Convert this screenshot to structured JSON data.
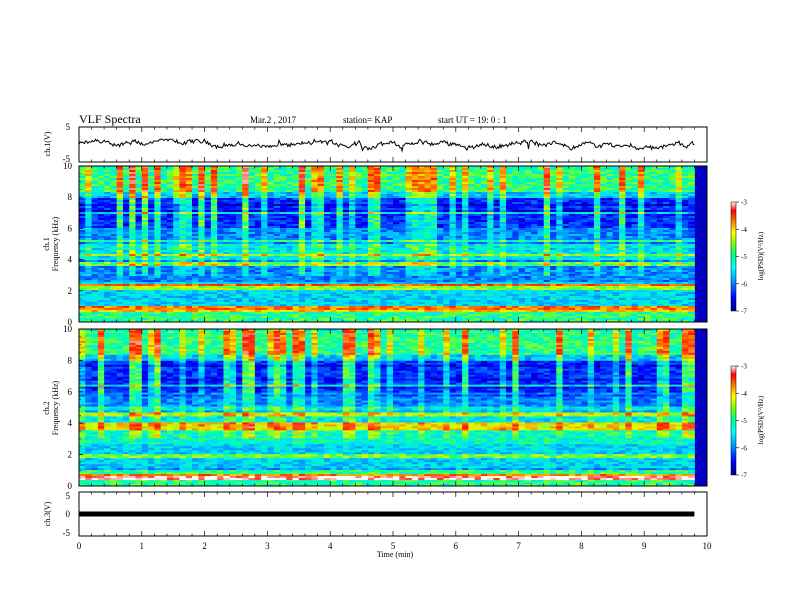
{
  "header": {
    "title": "VLF Spectra",
    "date": "Mar.2 , 2017",
    "station": "station= KAP",
    "start_ut": "start  UT =   19: 0  : 1"
  },
  "chart_data": [
    {
      "type": "line",
      "panel": "ch1-waveform",
      "ylabel": "ch.1(V)",
      "ylim": [
        -5,
        5
      ],
      "yticks": [
        "5",
        "-5"
      ],
      "xlim": [
        0,
        10
      ],
      "data_extent_x": [
        0,
        9.8
      ],
      "approx_mean": 0,
      "approx_range": [
        -1.8,
        1.5
      ]
    },
    {
      "type": "heatmap",
      "panel": "ch1-spectrogram",
      "ylabel": "ch.1\nFrequency (kHz)",
      "ylim": [
        0,
        10
      ],
      "yticks": [
        "0",
        "2",
        "4",
        "6",
        "8",
        "10"
      ],
      "xlim": [
        0,
        10
      ],
      "data_extent_x": [
        0,
        9.8
      ],
      "colorbar": {
        "label": "log(PSD)(V²/Hz)",
        "range": [
          -7,
          -3
        ],
        "ticks": [
          "-3",
          "-4",
          "-5",
          "-6",
          "-7"
        ],
        "colormap": [
          "#000080",
          "#0000ff",
          "#00a0ff",
          "#00ffff",
          "#00ff80",
          "#80ff00",
          "#ffff00",
          "#ff8000",
          "#ff0000",
          "#ffffff"
        ]
      },
      "features": [
        {
          "freq_khz": [
            6.0,
            8.0
          ],
          "log_psd": -6.3,
          "desc": "dark band"
        },
        {
          "freq_khz": [
            0.6,
            1.0
          ],
          "log_psd": -3.8,
          "desc": "strong band"
        },
        {
          "freq_khz": [
            2.0,
            2.4
          ],
          "log_psd": -4.5,
          "desc": "enhanced band"
        },
        {
          "freq_khz": [
            3.2,
            4.0
          ],
          "log_psd": -5.8,
          "desc": "weak band"
        }
      ]
    },
    {
      "type": "heatmap",
      "panel": "ch2-spectrogram",
      "ylabel": "ch.2\nFrequency (kHz)",
      "ylim": [
        0,
        10
      ],
      "yticks": [
        "0",
        "2",
        "4",
        "6",
        "8",
        "10"
      ],
      "xlim": [
        0,
        10
      ],
      "data_extent_x": [
        0,
        9.8
      ],
      "colorbar": {
        "label": "log(PSD)(V²/Hz)",
        "range": [
          -7,
          -3
        ],
        "ticks": [
          "-3",
          "-4",
          "-5",
          "-6",
          "-7"
        ]
      },
      "features": [
        {
          "freq_khz": [
            6.0,
            8.0
          ],
          "log_psd": -6.3,
          "desc": "dark band"
        },
        {
          "freq_khz": [
            3.5,
            4.0
          ],
          "log_psd": -4.2,
          "desc": "enhanced band"
        },
        {
          "freq_khz": [
            0.4,
            0.8
          ],
          "log_psd": -3.8,
          "desc": "strong band"
        }
      ]
    },
    {
      "type": "line",
      "panel": "ch3-waveform",
      "ylabel": "ch.3(V)",
      "ylim": [
        -5,
        5
      ],
      "yticks": [
        "5",
        "0",
        "-5"
      ],
      "xlim": [
        0,
        10
      ],
      "data_extent_x": [
        0,
        9.8
      ],
      "approx_value": 0
    }
  ],
  "x_axis": {
    "label": "Time  (min)",
    "ticks": [
      "0",
      "1",
      "2",
      "3",
      "4",
      "5",
      "6",
      "7",
      "8",
      "9",
      "10"
    ]
  }
}
